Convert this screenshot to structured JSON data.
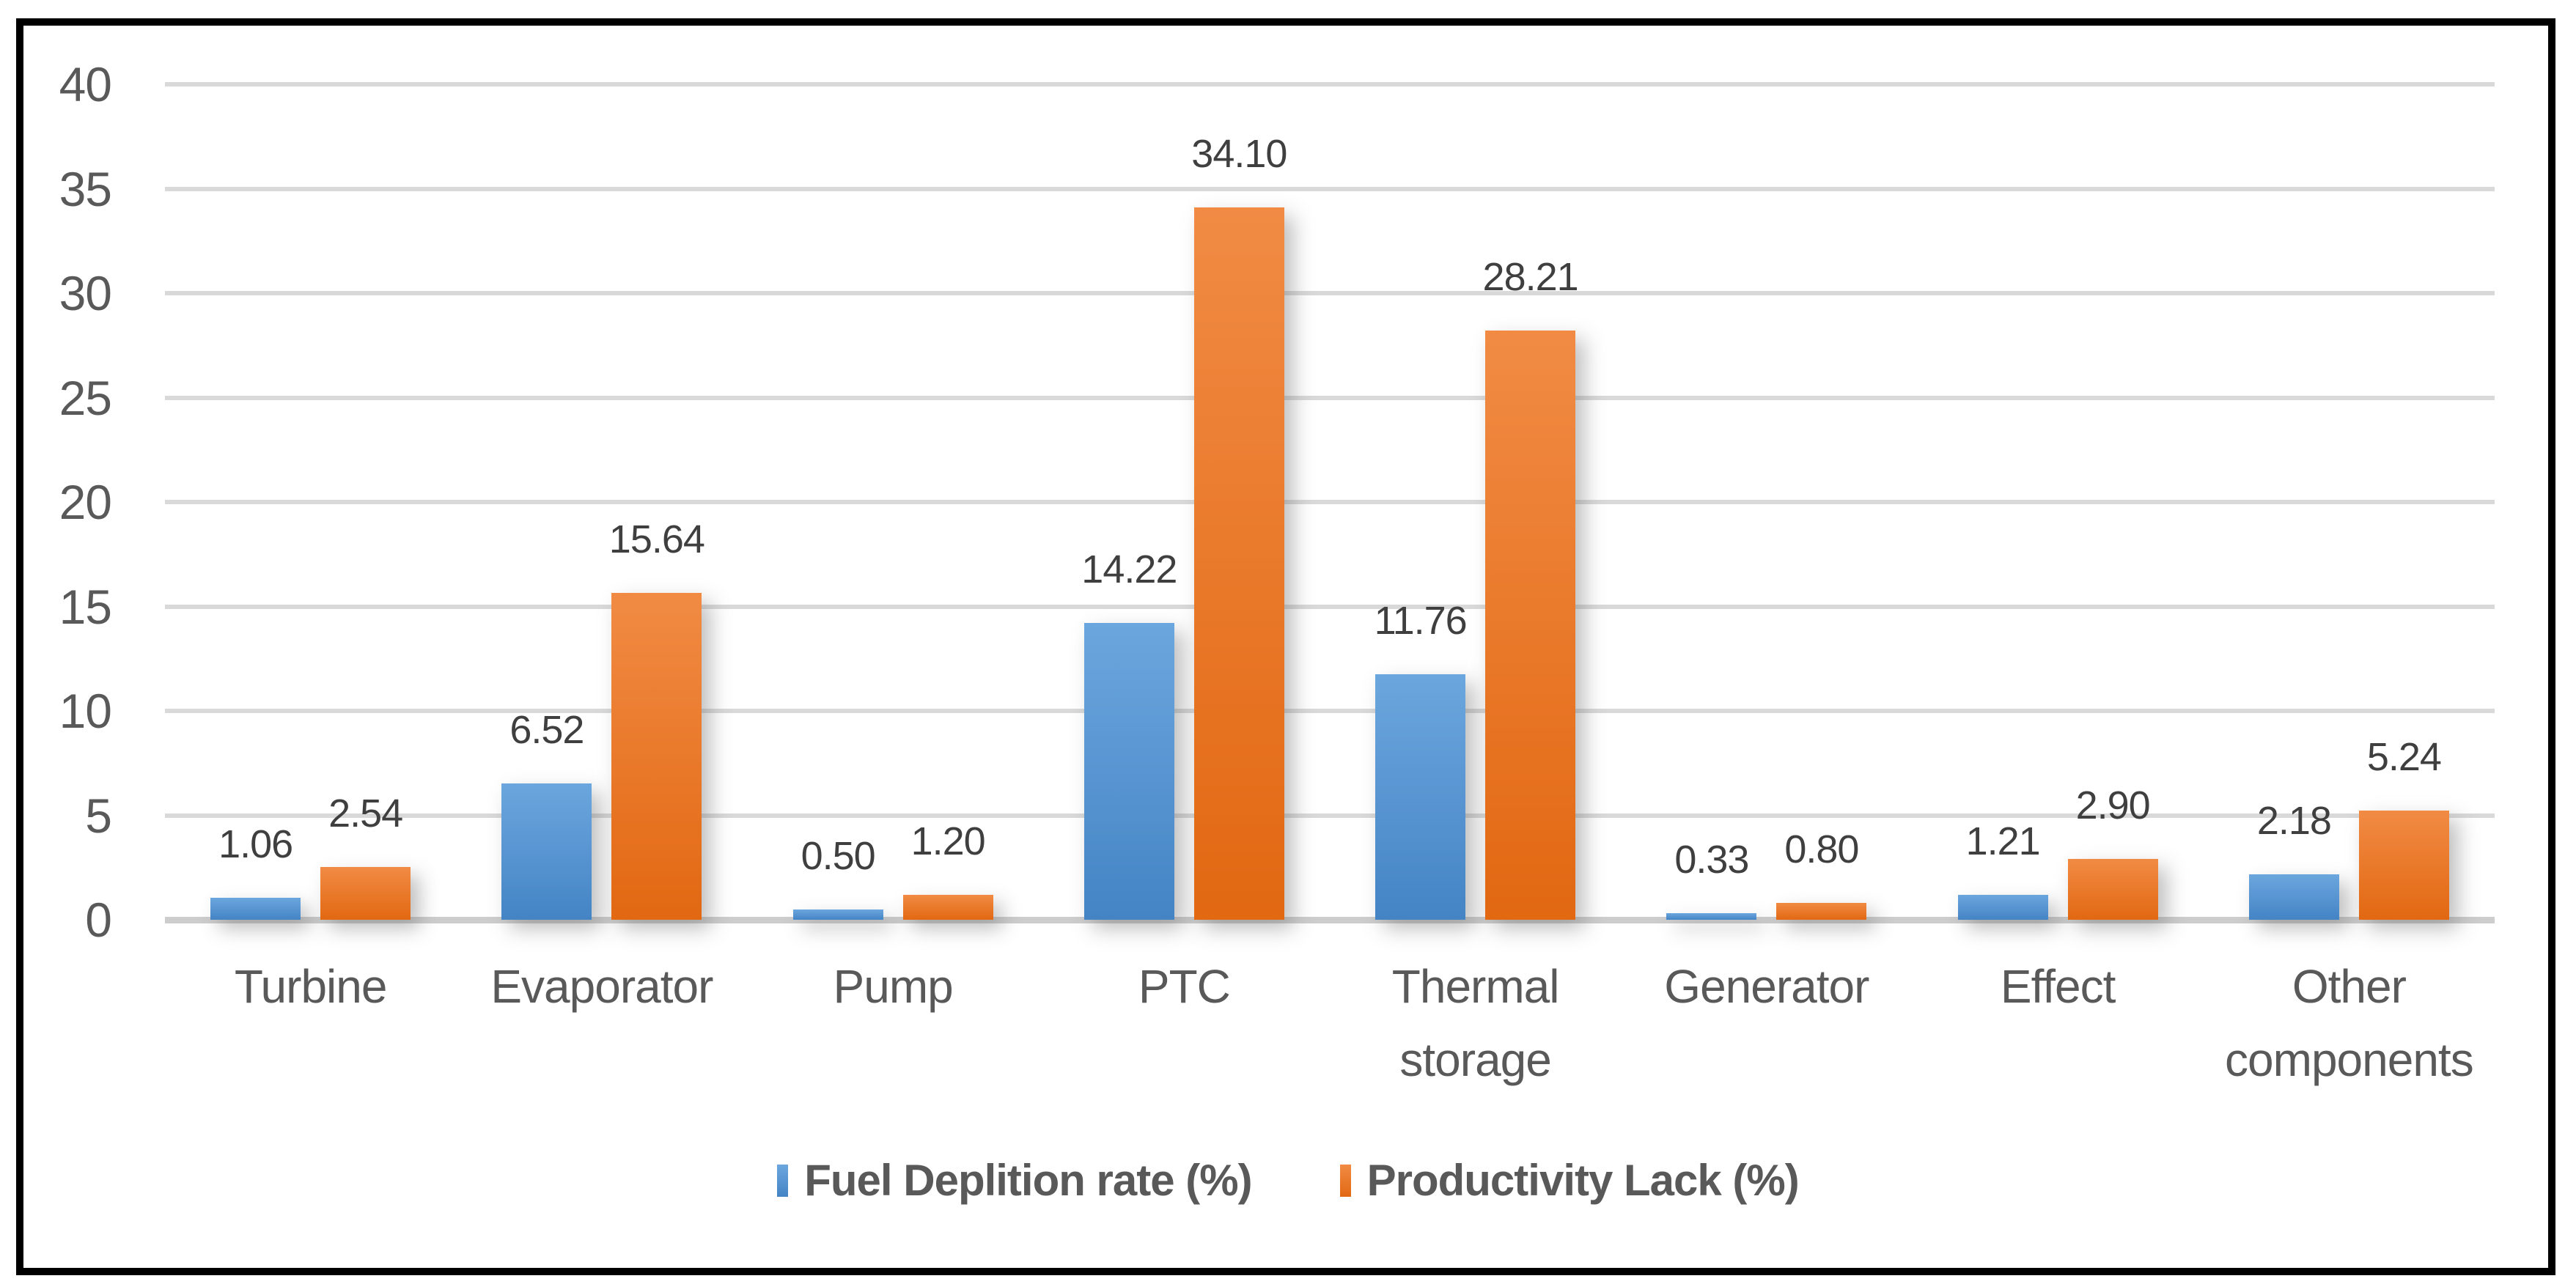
{
  "chart_data": {
    "type": "bar",
    "title": "",
    "categories": [
      "Turbine",
      "Evaporator",
      "Pump",
      "PTC",
      "Thermal storage",
      "Generator",
      "Effect",
      "Other components"
    ],
    "series": [
      {
        "name": "Fuel Deplition rate (%)",
        "values": [
          1.06,
          6.52,
          0.5,
          14.22,
          11.76,
          0.33,
          1.21,
          2.18
        ],
        "labels": [
          "1.06",
          "6.52",
          "0.50",
          "14.22",
          "11.76",
          "0.33",
          "1.21",
          "2.18"
        ],
        "color_top": "#6CA6DE",
        "color_bottom": "#4484C5"
      },
      {
        "name": "Productivity Lack (%)",
        "values": [
          2.54,
          15.64,
          1.2,
          34.1,
          28.21,
          0.8,
          2.9,
          5.24
        ],
        "labels": [
          "2.54",
          "15.64",
          "1.20",
          "34.10",
          "28.21",
          "0.80",
          "2.90",
          "5.24"
        ],
        "color_top": "#F18B44",
        "color_bottom": "#E26812"
      }
    ],
    "y_axis": {
      "min": 0,
      "max": 40,
      "step": 5,
      "tick_labels": [
        "0",
        "5",
        "10",
        "15",
        "20",
        "25",
        "30",
        "35",
        "40"
      ]
    },
    "grid": true,
    "legend_position": "bottom"
  },
  "styles": {
    "background": "#FFFFFF",
    "frame_border_color": "#000000",
    "gridline_color": "#D9D9D9",
    "axis_line_color": "#CDCDCD",
    "tick_label_color": "#595959",
    "category_label_color": "#595959",
    "data_label_color": "#3F3F3F",
    "legend_text_color": "#595959"
  }
}
